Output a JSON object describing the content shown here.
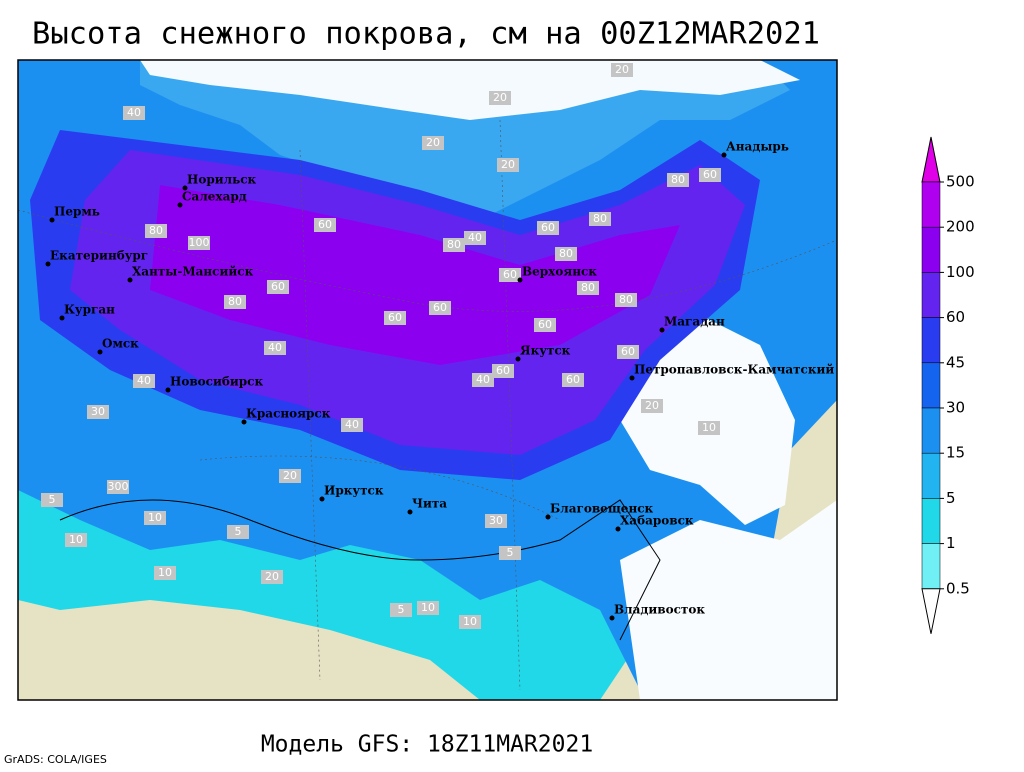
{
  "title": "Высота снежного покрова, см на 00Z12MAR2021",
  "footer": "Модель GFS: 18Z11MAR2021",
  "credits": "GrADS: COLA/IGES",
  "colorbar": {
    "levels": [
      500,
      200,
      100,
      60,
      45,
      30,
      15,
      5,
      1,
      0.5
    ],
    "colors": [
      "#e000e8",
      "#b000f0",
      "#8c00f0",
      "#6424f0",
      "#2a3cf0",
      "#1464f0",
      "#1c90f0",
      "#22b4f0",
      "#20d8e8",
      "#70f0f4",
      "#ffffff"
    ]
  },
  "cities": [
    "Пермь",
    "Екатеринбург",
    "Ханты-Мансийск",
    "Курган",
    "Омск",
    "Новосибирск",
    "Красноярск",
    "Норильск",
    "Салехард",
    "Иркутск",
    "Чита",
    "Верхоянск",
    "Якутск",
    "Магадан",
    "Анадырь",
    "Петропавловск-Камчатский",
    "Благовещенск",
    "Хабаровск",
    "Владивосток"
  ],
  "contour_labels": [
    20,
    20,
    20,
    20,
    40,
    60,
    100,
    80,
    60,
    80,
    80,
    60,
    80,
    40,
    80,
    60,
    80,
    80,
    60,
    60,
    80,
    60,
    60,
    40,
    60,
    60,
    60,
    20,
    10,
    40,
    40,
    20,
    300,
    10,
    5,
    10,
    30,
    5,
    10,
    10,
    5,
    5,
    10,
    20,
    40,
    30
  ]
}
